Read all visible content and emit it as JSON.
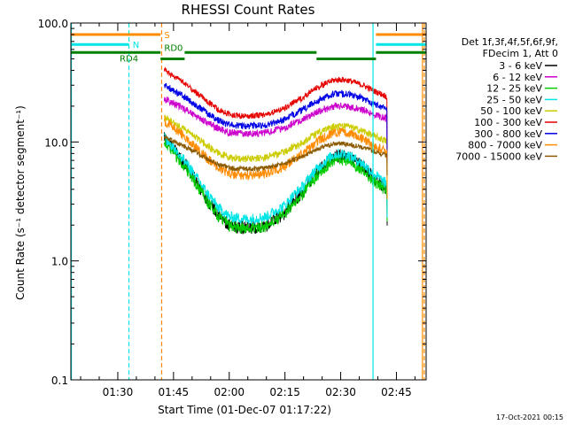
{
  "chart_data": {
    "type": "line",
    "title": "RHESSI Count Rates",
    "xlabel": "Start Time (01-Dec-07 01:17:22)",
    "ylabel": "Count Rate (s⁻¹ detector segment⁻¹)",
    "yscale": "log",
    "ylim": [
      0.1,
      100.0
    ],
    "xlim_minutes": [
      77.37,
      173.0
    ],
    "x_ticks": [
      {
        "label": "01:30",
        "minutes": 90
      },
      {
        "label": "01:45",
        "minutes": 105
      },
      {
        "label": "02:00",
        "minutes": 120
      },
      {
        "label": "02:15",
        "minutes": 135
      },
      {
        "label": "02:30",
        "minutes": 150
      },
      {
        "label": "02:45",
        "minutes": 165
      }
    ],
    "y_ticks": [
      {
        "label": "0.1",
        "value": 0.1
      },
      {
        "label": "1.0",
        "value": 1.0
      },
      {
        "label": "10.0",
        "value": 10.0
      },
      {
        "label": "100.0",
        "value": 100.0
      }
    ],
    "legend_header": [
      "Det 1f,3f,4f,5f,6f,9f,",
      "FDecim 1, Att 0"
    ],
    "profile_x_minutes": [
      102.5,
      104,
      106,
      108,
      110,
      112,
      114,
      117,
      120,
      125,
      130,
      135,
      140,
      143,
      146,
      148,
      150,
      152,
      154,
      156,
      159,
      162.5
    ],
    "profile_shape": [
      1.0,
      0.88,
      0.72,
      0.6,
      0.48,
      0.38,
      0.3,
      0.22,
      0.18,
      0.17,
      0.18,
      0.23,
      0.35,
      0.48,
      0.6,
      0.68,
      0.7,
      0.68,
      0.62,
      0.56,
      0.45,
      0.36
    ],
    "series": [
      {
        "name": "3 - 6 keV",
        "color": "#000000",
        "peak": 11.0,
        "end": 3.6,
        "shape_power": 1.0,
        "noise": 0.055
      },
      {
        "name": "6 - 12 keV",
        "color": "#cc00cc",
        "peak": 23.0,
        "end": 12.5,
        "shape_power": 0.38,
        "noise": 0.03
      },
      {
        "name": "12 - 25 keV",
        "color": "#00cc00",
        "peak": 10.0,
        "end": 3.9,
        "shape_power": 0.95,
        "noise": 0.05
      },
      {
        "name": "25 - 50 keV",
        "color": "#00e5e5",
        "peak": 11.0,
        "end": 4.2,
        "shape_power": 0.9,
        "noise": 0.045
      },
      {
        "name": "50 - 100 keV",
        "color": "#cccc00",
        "peak": 16.0,
        "end": 8.2,
        "shape_power": 0.45,
        "noise": 0.03
      },
      {
        "name": "100 - 300 keV",
        "color": "#e60000",
        "peak": 40.0,
        "end": 15.0,
        "shape_power": 0.5,
        "noise": 0.025
      },
      {
        "name": "300 - 800 keV",
        "color": "#0000e6",
        "peak": 30.0,
        "end": 12.0,
        "shape_power": 0.45,
        "noise": 0.028
      },
      {
        "name": "800 - 7000 keV",
        "color": "#ff8c00",
        "peak": 15.0,
        "end": 6.0,
        "shape_power": 0.6,
        "noise": 0.04
      },
      {
        "name": "7000 - 15000 keV",
        "color": "#8b5a00",
        "peak": 11.0,
        "end": 9.5,
        "shape_power": 0.35,
        "noise": 0.02
      }
    ],
    "vertical_lines": [
      {
        "minutes": 77.5,
        "color": "#00e5e5",
        "style": "solid"
      },
      {
        "minutes": 93.0,
        "color": "#00e5e5",
        "style": "dashed"
      },
      {
        "minutes": 101.8,
        "color": "#ff8c00",
        "style": "dashed"
      },
      {
        "minutes": 158.7,
        "color": "#00e5e5",
        "style": "solid"
      },
      {
        "minutes": 172.0,
        "color": "#ff8c00",
        "style": "solid"
      },
      {
        "minutes": 172.5,
        "color": "#ff8c00",
        "style": "dashed"
      }
    ],
    "flag_bars": [
      {
        "label": "S",
        "color": "#ff8c00",
        "y": 80.0,
        "segments": [
          [
            77.37,
            101.5
          ],
          [
            159.5,
            173.0
          ]
        ]
      },
      {
        "label": "N",
        "color": "#00e5e5",
        "y": 66.0,
        "segments": [
          [
            77.37,
            93.0
          ],
          [
            159.5,
            173.0
          ]
        ]
      },
      {
        "label": "",
        "color": "#008000",
        "y": 56.5,
        "segments": [
          [
            77.37,
            101.5
          ],
          [
            108.0,
            143.5
          ],
          [
            159.5,
            173.0
          ]
        ]
      },
      {
        "label": "",
        "color": "#008000",
        "y": 50.0,
        "segments": [
          [
            101.5,
            108.0
          ],
          [
            143.5,
            159.5
          ]
        ]
      }
    ],
    "flag_labels": [
      {
        "text": "S",
        "color": "#ff8c00"
      },
      {
        "text": "N",
        "color": "#00e5e5"
      },
      {
        "text": "RD0",
        "color": "#008000"
      },
      {
        "text": "RD4",
        "color": "#008000"
      }
    ],
    "timestamp": "17-Oct-2021 00:15"
  }
}
